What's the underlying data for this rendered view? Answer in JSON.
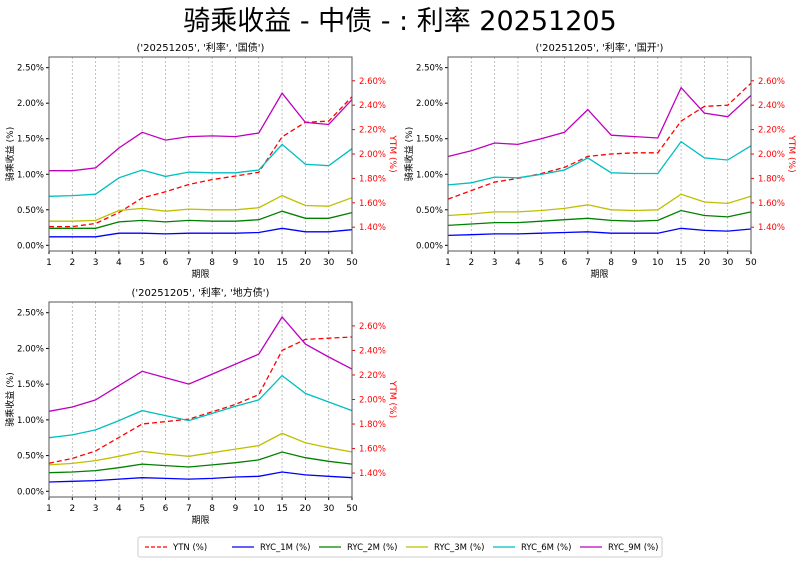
{
  "title": "骑乘收益 - 中债 - : 利率 20251205",
  "legend": {
    "placement": "bottom-center",
    "entries": [
      "YTN (%)",
      "RYC_1M (%)",
      "RYC_2M (%)",
      "RYC_3M (%)",
      "RYC_6M (%)",
      "RYC_9M (%)"
    ]
  },
  "colors": {
    "YTN": "#ff0000",
    "RYC_1M": "#0000ff",
    "RYC_2M": "#008000",
    "RYC_3M": "#bfbf00",
    "RYC_6M": "#00bfbf",
    "RYC_9M": "#bf00bf"
  },
  "chart_data": [
    {
      "type": "line",
      "title": "('20251205', '利率', '国债')",
      "xlabel": "期限",
      "ylabel": "骑乘收益 (%)",
      "y2label": "YTM (%)",
      "categories": [
        "1",
        "2",
        "3",
        "4",
        "5",
        "6",
        "7",
        "8",
        "9",
        "10",
        "15",
        "20",
        "30",
        "50"
      ],
      "ylim": [
        -0.08,
        2.65
      ],
      "y2lim": [
        1.205,
        2.795
      ],
      "yticks": [
        "0.00%",
        "0.50%",
        "1.00%",
        "1.50%",
        "2.00%",
        "2.50%"
      ],
      "y2ticks": [
        "1.40%",
        "1.60%",
        "1.80%",
        "2.00%",
        "2.20%",
        "2.40%",
        "2.60%"
      ],
      "grid": "x-dashed",
      "series": [
        {
          "name": "YTN (%)",
          "axis": "right",
          "values": [
            1.405,
            1.405,
            1.43,
            1.52,
            1.64,
            1.69,
            1.75,
            1.79,
            1.82,
            1.85,
            2.14,
            2.26,
            2.27,
            2.47
          ]
        },
        {
          "name": "RYC_1M (%)",
          "axis": "left",
          "values": [
            0.12,
            0.12,
            0.12,
            0.17,
            0.17,
            0.16,
            0.17,
            0.17,
            0.17,
            0.18,
            0.24,
            0.19,
            0.19,
            0.22
          ]
        },
        {
          "name": "RYC_2M (%)",
          "axis": "left",
          "values": [
            0.24,
            0.24,
            0.24,
            0.33,
            0.35,
            0.33,
            0.35,
            0.34,
            0.34,
            0.36,
            0.48,
            0.38,
            0.38,
            0.46
          ]
        },
        {
          "name": "RYC_3M (%)",
          "axis": "left",
          "values": [
            0.34,
            0.34,
            0.35,
            0.49,
            0.52,
            0.48,
            0.51,
            0.5,
            0.5,
            0.53,
            0.7,
            0.56,
            0.55,
            0.67
          ]
        },
        {
          "name": "RYC_6M (%)",
          "axis": "left",
          "values": [
            0.69,
            0.7,
            0.72,
            0.95,
            1.06,
            0.97,
            1.03,
            1.02,
            1.02,
            1.06,
            1.42,
            1.14,
            1.12,
            1.36
          ]
        },
        {
          "name": "RYC_9M (%)",
          "axis": "left",
          "values": [
            1.05,
            1.05,
            1.09,
            1.37,
            1.59,
            1.48,
            1.53,
            1.54,
            1.53,
            1.58,
            2.14,
            1.73,
            1.7,
            2.05
          ]
        }
      ]
    },
    {
      "type": "line",
      "title": "('20251205', '利率', '国开')",
      "xlabel": "期限",
      "ylabel": "骑乘收益 (%)",
      "y2label": "YTM (%)",
      "categories": [
        "1",
        "2",
        "3",
        "4",
        "5",
        "6",
        "7",
        "8",
        "9",
        "10",
        "15",
        "20",
        "30",
        "50"
      ],
      "ylim": [
        -0.08,
        2.65
      ],
      "y2lim": [
        1.205,
        2.795
      ],
      "yticks": [
        "0.00%",
        "0.50%",
        "1.00%",
        "1.50%",
        "2.00%",
        "2.50%"
      ],
      "y2ticks": [
        "1.40%",
        "1.60%",
        "1.80%",
        "2.00%",
        "2.20%",
        "2.40%",
        "2.60%"
      ],
      "grid": "x-dashed",
      "series": [
        {
          "name": "YTN (%)",
          "axis": "right",
          "values": [
            1.63,
            1.7,
            1.77,
            1.8,
            1.84,
            1.89,
            1.98,
            2.0,
            2.01,
            2.01,
            2.27,
            2.39,
            2.4,
            2.58
          ]
        },
        {
          "name": "RYC_1M (%)",
          "axis": "left",
          "values": [
            0.14,
            0.15,
            0.16,
            0.16,
            0.17,
            0.18,
            0.19,
            0.17,
            0.17,
            0.17,
            0.24,
            0.21,
            0.2,
            0.23
          ]
        },
        {
          "name": "RYC_2M (%)",
          "axis": "left",
          "values": [
            0.28,
            0.3,
            0.32,
            0.32,
            0.34,
            0.36,
            0.38,
            0.35,
            0.34,
            0.35,
            0.49,
            0.42,
            0.4,
            0.47
          ]
        },
        {
          "name": "RYC_3M (%)",
          "axis": "left",
          "values": [
            0.42,
            0.44,
            0.47,
            0.47,
            0.49,
            0.52,
            0.57,
            0.5,
            0.49,
            0.5,
            0.72,
            0.61,
            0.59,
            0.69
          ]
        },
        {
          "name": "RYC_6M (%)",
          "axis": "left",
          "values": [
            0.85,
            0.88,
            0.96,
            0.95,
            1.0,
            1.06,
            1.23,
            1.02,
            1.01,
            1.01,
            1.46,
            1.23,
            1.2,
            1.4
          ]
        },
        {
          "name": "RYC_9M (%)",
          "axis": "left",
          "values": [
            1.25,
            1.33,
            1.44,
            1.42,
            1.5,
            1.59,
            1.91,
            1.55,
            1.53,
            1.51,
            2.22,
            1.86,
            1.81,
            2.11
          ]
        }
      ]
    },
    {
      "type": "line",
      "title": "('20251205', '利率', '地方债')",
      "xlabel": "期限",
      "ylabel": "骑乘收益 (%)",
      "y2label": "YTM (%)",
      "categories": [
        "1",
        "2",
        "3",
        "4",
        "5",
        "6",
        "7",
        "8",
        "9",
        "10",
        "15",
        "20",
        "30",
        "50"
      ],
      "ylim": [
        -0.08,
        2.65
      ],
      "y2lim": [
        1.205,
        2.795
      ],
      "yticks": [
        "0.00%",
        "0.50%",
        "1.00%",
        "1.50%",
        "2.00%",
        "2.50%"
      ],
      "y2ticks": [
        "1.40%",
        "1.60%",
        "1.80%",
        "2.00%",
        "2.20%",
        "2.40%",
        "2.60%"
      ],
      "grid": "x-dashed",
      "series": [
        {
          "name": "YTN (%)",
          "axis": "right",
          "values": [
            1.48,
            1.52,
            1.58,
            1.69,
            1.8,
            1.82,
            1.84,
            1.9,
            1.96,
            2.04,
            2.4,
            2.49,
            2.5,
            2.51
          ]
        },
        {
          "name": "RYC_1M (%)",
          "axis": "left",
          "values": [
            0.13,
            0.14,
            0.15,
            0.17,
            0.19,
            0.18,
            0.17,
            0.18,
            0.2,
            0.21,
            0.27,
            0.23,
            0.21,
            0.19
          ]
        },
        {
          "name": "RYC_2M (%)",
          "axis": "left",
          "values": [
            0.26,
            0.27,
            0.29,
            0.33,
            0.38,
            0.36,
            0.34,
            0.37,
            0.4,
            0.44,
            0.55,
            0.47,
            0.42,
            0.38
          ]
        },
        {
          "name": "RYC_3M (%)",
          "axis": "left",
          "values": [
            0.37,
            0.39,
            0.43,
            0.49,
            0.56,
            0.52,
            0.49,
            0.54,
            0.59,
            0.64,
            0.81,
            0.68,
            0.61,
            0.55
          ]
        },
        {
          "name": "RYC_6M (%)",
          "axis": "left",
          "values": [
            0.75,
            0.79,
            0.86,
            0.99,
            1.13,
            1.06,
            0.99,
            1.09,
            1.19,
            1.28,
            1.62,
            1.37,
            1.25,
            1.13
          ]
        },
        {
          "name": "RYC_9M (%)",
          "axis": "left",
          "values": [
            1.12,
            1.18,
            1.28,
            1.48,
            1.68,
            1.59,
            1.5,
            1.64,
            1.78,
            1.92,
            2.44,
            2.06,
            1.88,
            1.71
          ]
        }
      ]
    }
  ]
}
